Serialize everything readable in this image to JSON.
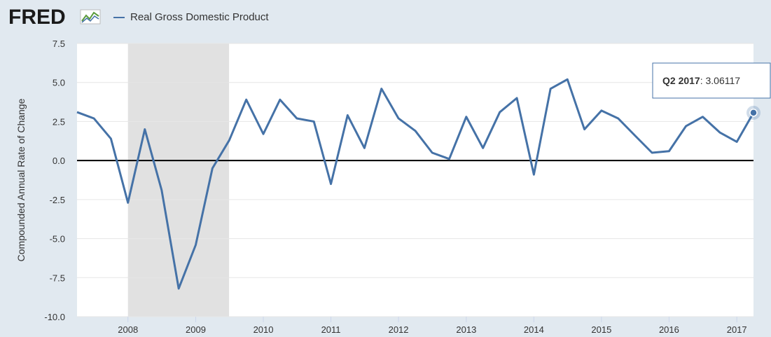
{
  "header": {
    "logo_text": "FRED",
    "legend_label": "Real Gross Domestic Product",
    "series_color": "#4572a7"
  },
  "tooltip": {
    "period": "Q2 2017",
    "value": "3.06117"
  },
  "chart_data": {
    "type": "line",
    "title": "",
    "ylabel": "Compounded Annual Rate of Change",
    "xlabel": "",
    "ylim": [
      -10,
      7.5
    ],
    "yticks": [
      "7.5",
      "5.0",
      "2.5",
      "0.0",
      "-2.5",
      "-5.0",
      "-7.5",
      "-10.0"
    ],
    "xticks": [
      "2008",
      "2009",
      "2010",
      "2011",
      "2012",
      "2013",
      "2014",
      "2015",
      "2016",
      "2017"
    ],
    "xlim": [
      "2007-04-01",
      "2017-04-01"
    ],
    "recession": {
      "start": "2008-01-01",
      "end": "2009-06-30",
      "color": "#e1e1e1"
    },
    "zero_line": true,
    "series": [
      {
        "name": "Real Gross Domestic Product",
        "x": [
          "2007-04-01",
          "2007-07-01",
          "2007-10-01",
          "2008-01-01",
          "2008-04-01",
          "2008-07-01",
          "2008-10-01",
          "2009-01-01",
          "2009-04-01",
          "2009-07-01",
          "2009-10-01",
          "2010-01-01",
          "2010-04-01",
          "2010-07-01",
          "2010-10-01",
          "2011-01-01",
          "2011-04-01",
          "2011-07-01",
          "2011-10-01",
          "2012-01-01",
          "2012-04-01",
          "2012-07-01",
          "2012-10-01",
          "2013-01-01",
          "2013-04-01",
          "2013-07-01",
          "2013-10-01",
          "2014-01-01",
          "2014-04-01",
          "2014-07-01",
          "2014-10-01",
          "2015-01-01",
          "2015-04-01",
          "2015-07-01",
          "2015-10-01",
          "2016-01-01",
          "2016-04-01",
          "2016-07-01",
          "2016-10-01",
          "2017-01-01",
          "2017-04-01"
        ],
        "values": [
          3.1,
          2.7,
          1.4,
          -2.7,
          2.0,
          -1.9,
          -8.2,
          -5.4,
          -0.5,
          1.3,
          3.9,
          1.7,
          3.9,
          2.7,
          2.5,
          -1.5,
          2.9,
          0.8,
          4.6,
          2.7,
          1.9,
          0.5,
          0.1,
          2.8,
          0.8,
          3.1,
          4.0,
          -0.9,
          4.6,
          5.2,
          2.0,
          3.2,
          2.7,
          1.6,
          0.5,
          0.6,
          2.2,
          2.8,
          1.8,
          1.2,
          3.06117
        ]
      }
    ]
  }
}
